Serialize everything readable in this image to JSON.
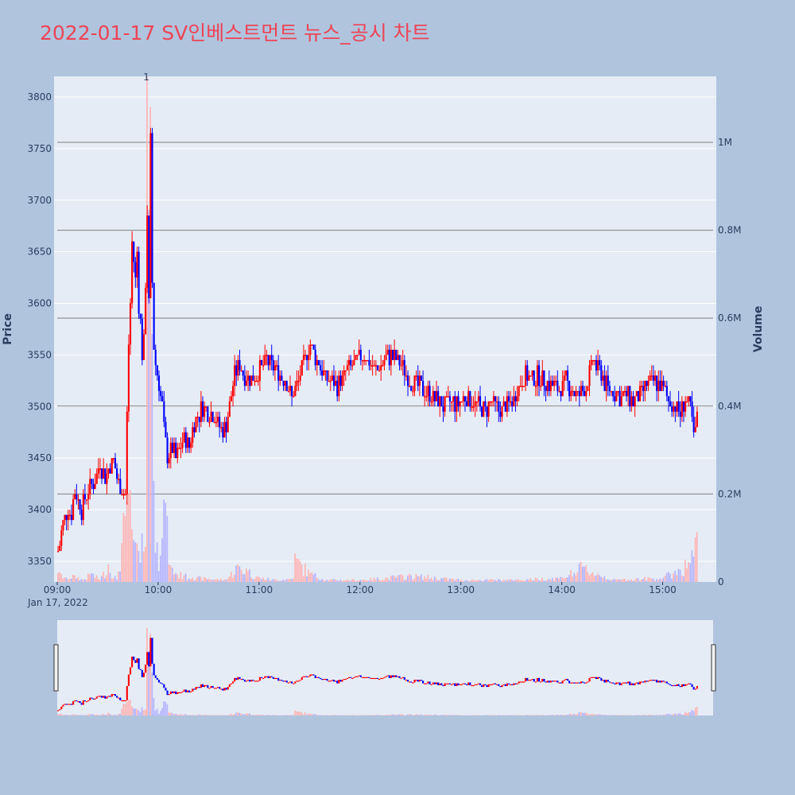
{
  "title": "2022-01-17 SV인베스트먼트 뉴스_공시 차트",
  "colors": {
    "page_bg": "#b0c4de",
    "plot_bg": "#e5ecf6",
    "up": "#ff0000",
    "down": "#0000ff",
    "up_volume": "#ffb4b4",
    "down_volume": "#b4b4ff",
    "title": "#ee4455",
    "hline": "#808080"
  },
  "chart_data": {
    "type": "candlestick",
    "date_label": "Jan 17, 2022",
    "x_start": "09:00",
    "x_end": "15:30",
    "x_ticks": [
      "09:00",
      "10:00",
      "11:00",
      "12:00",
      "13:00",
      "14:00",
      "15:00"
    ],
    "y_label": "Price",
    "y_ticks": [
      3350,
      3400,
      3450,
      3500,
      3550,
      3600,
      3650,
      3700,
      3750,
      3800
    ],
    "y_range": [
      3330,
      3820
    ],
    "y2_label": "Volume",
    "y2_ticks": [
      {
        "value": 0,
        "label": "0"
      },
      {
        "value": 200000,
        "label": "0.2M"
      },
      {
        "value": 400000,
        "label": "0.4M"
      },
      {
        "value": 600000,
        "label": "0.6M"
      },
      {
        "value": 800000,
        "label": "0.8M"
      },
      {
        "value": 1000000,
        "label": "1M"
      }
    ],
    "y2_range": [
      0,
      1150000
    ],
    "annotation": {
      "text": "1",
      "time": "09:53"
    },
    "price_points": [
      [
        "09:00",
        3360
      ],
      [
        "09:03",
        3385
      ],
      [
        "09:06",
        3400
      ],
      [
        "09:08",
        3395
      ],
      [
        "09:10",
        3420
      ],
      [
        "09:14",
        3400
      ],
      [
        "09:18",
        3420
      ],
      [
        "09:22",
        3430
      ],
      [
        "09:25",
        3445
      ],
      [
        "09:28",
        3430
      ],
      [
        "09:30",
        3440
      ],
      [
        "09:33",
        3450
      ],
      [
        "09:35",
        3430
      ],
      [
        "09:38",
        3420
      ],
      [
        "09:40",
        3415
      ],
      [
        "09:41",
        3490
      ],
      [
        "09:42",
        3560
      ],
      [
        "09:43",
        3600
      ],
      [
        "09:44",
        3660
      ],
      [
        "09:45",
        3640
      ],
      [
        "09:46",
        3620
      ],
      [
        "09:47",
        3650
      ],
      [
        "09:48",
        3600
      ],
      [
        "09:49",
        3580
      ],
      [
        "09:50",
        3550
      ],
      [
        "09:51",
        3560
      ],
      [
        "09:52",
        3620
      ],
      [
        "09:53",
        3690
      ],
      [
        "09:54",
        3600
      ],
      [
        "09:55",
        3760
      ],
      [
        "09:56",
        3620
      ],
      [
        "09:57",
        3560
      ],
      [
        "09:58",
        3540
      ],
      [
        "10:00",
        3520
      ],
      [
        "10:02",
        3500
      ],
      [
        "10:03",
        3480
      ],
      [
        "10:05",
        3450
      ],
      [
        "10:08",
        3460
      ],
      [
        "10:10",
        3450
      ],
      [
        "10:12",
        3460
      ],
      [
        "10:15",
        3470
      ],
      [
        "10:18",
        3460
      ],
      [
        "10:20",
        3480
      ],
      [
        "10:23",
        3490
      ],
      [
        "10:26",
        3500
      ],
      [
        "10:30",
        3495
      ],
      [
        "10:33",
        3490
      ],
      [
        "10:36",
        3480
      ],
      [
        "10:38",
        3475
      ],
      [
        "10:40",
        3480
      ],
      [
        "10:42",
        3500
      ],
      [
        "10:45",
        3530
      ],
      [
        "10:48",
        3540
      ],
      [
        "10:51",
        3530
      ],
      [
        "10:54",
        3525
      ],
      [
        "10:57",
        3530
      ],
      [
        "11:00",
        3535
      ],
      [
        "11:04",
        3545
      ],
      [
        "11:08",
        3540
      ],
      [
        "11:12",
        3530
      ],
      [
        "11:16",
        3525
      ],
      [
        "11:19",
        3510
      ],
      [
        "11:22",
        3520
      ],
      [
        "11:26",
        3540
      ],
      [
        "11:30",
        3560
      ],
      [
        "11:34",
        3545
      ],
      [
        "11:38",
        3530
      ],
      [
        "11:42",
        3525
      ],
      [
        "11:46",
        3520
      ],
      [
        "11:50",
        3530
      ],
      [
        "11:54",
        3540
      ],
      [
        "11:58",
        3545
      ],
      [
        "12:02",
        3550
      ],
      [
        "12:06",
        3540
      ],
      [
        "12:10",
        3535
      ],
      [
        "12:14",
        3545
      ],
      [
        "12:18",
        3550
      ],
      [
        "12:22",
        3545
      ],
      [
        "12:26",
        3535
      ],
      [
        "12:30",
        3525
      ],
      [
        "12:34",
        3520
      ],
      [
        "12:38",
        3515
      ],
      [
        "12:42",
        3510
      ],
      [
        "12:46",
        3505
      ],
      [
        "12:50",
        3500
      ],
      [
        "12:54",
        3505
      ],
      [
        "12:58",
        3500
      ],
      [
        "13:02",
        3510
      ],
      [
        "13:06",
        3505
      ],
      [
        "13:10",
        3500
      ],
      [
        "13:14",
        3495
      ],
      [
        "13:18",
        3505
      ],
      [
        "13:22",
        3495
      ],
      [
        "13:26",
        3500
      ],
      [
        "13:30",
        3505
      ],
      [
        "13:34",
        3520
      ],
      [
        "13:38",
        3530
      ],
      [
        "13:42",
        3525
      ],
      [
        "13:46",
        3530
      ],
      [
        "13:50",
        3525
      ],
      [
        "13:54",
        3520
      ],
      [
        "13:58",
        3515
      ],
      [
        "14:02",
        3525
      ],
      [
        "14:06",
        3515
      ],
      [
        "14:10",
        3510
      ],
      [
        "14:14",
        3520
      ],
      [
        "14:18",
        3545
      ],
      [
        "14:22",
        3535
      ],
      [
        "14:26",
        3520
      ],
      [
        "14:30",
        3515
      ],
      [
        "14:34",
        3510
      ],
      [
        "14:38",
        3510
      ],
      [
        "14:42",
        3505
      ],
      [
        "14:46",
        3510
      ],
      [
        "14:50",
        3520
      ],
      [
        "14:54",
        3525
      ],
      [
        "14:58",
        3520
      ],
      [
        "15:02",
        3510
      ],
      [
        "15:06",
        3500
      ],
      [
        "15:10",
        3495
      ],
      [
        "15:13",
        3505
      ],
      [
        "15:16",
        3500
      ],
      [
        "15:18",
        3470
      ],
      [
        "15:20",
        3490
      ]
    ],
    "volume_points": [
      [
        "09:00",
        20000
      ],
      [
        "09:05",
        10000
      ],
      [
        "09:10",
        15000
      ],
      [
        "09:15",
        5000
      ],
      [
        "09:20",
        20000
      ],
      [
        "09:25",
        5000
      ],
      [
        "09:30",
        40000
      ],
      [
        "09:35",
        5000
      ],
      [
        "09:40",
        150000
      ],
      [
        "09:42",
        200000
      ],
      [
        "09:44",
        120000
      ],
      [
        "09:46",
        90000
      ],
      [
        "09:48",
        70000
      ],
      [
        "09:50",
        110000
      ],
      [
        "09:52",
        80000
      ],
      [
        "09:53",
        1150000
      ],
      [
        "09:55",
        1080000
      ],
      [
        "09:57",
        230000
      ],
      [
        "09:59",
        90000
      ],
      [
        "10:01",
        60000
      ],
      [
        "10:04",
        180000
      ],
      [
        "10:06",
        40000
      ],
      [
        "10:10",
        20000
      ],
      [
        "10:15",
        15000
      ],
      [
        "10:20",
        10000
      ],
      [
        "10:30",
        8000
      ],
      [
        "10:40",
        5000
      ],
      [
        "10:47",
        40000
      ],
      [
        "10:53",
        25000
      ],
      [
        "11:00",
        10000
      ],
      [
        "11:10",
        5000
      ],
      [
        "11:20",
        8000
      ],
      [
        "11:20",
        60000
      ],
      [
        "11:30",
        20000
      ],
      [
        "11:40",
        5000
      ],
      [
        "12:00",
        5000
      ],
      [
        "12:30",
        15000
      ],
      [
        "13:00",
        5000
      ],
      [
        "13:30",
        5000
      ],
      [
        "14:00",
        10000
      ],
      [
        "14:12",
        35000
      ],
      [
        "14:30",
        5000
      ],
      [
        "15:00",
        10000
      ],
      [
        "15:15",
        45000
      ],
      [
        "15:29",
        170000
      ]
    ]
  }
}
